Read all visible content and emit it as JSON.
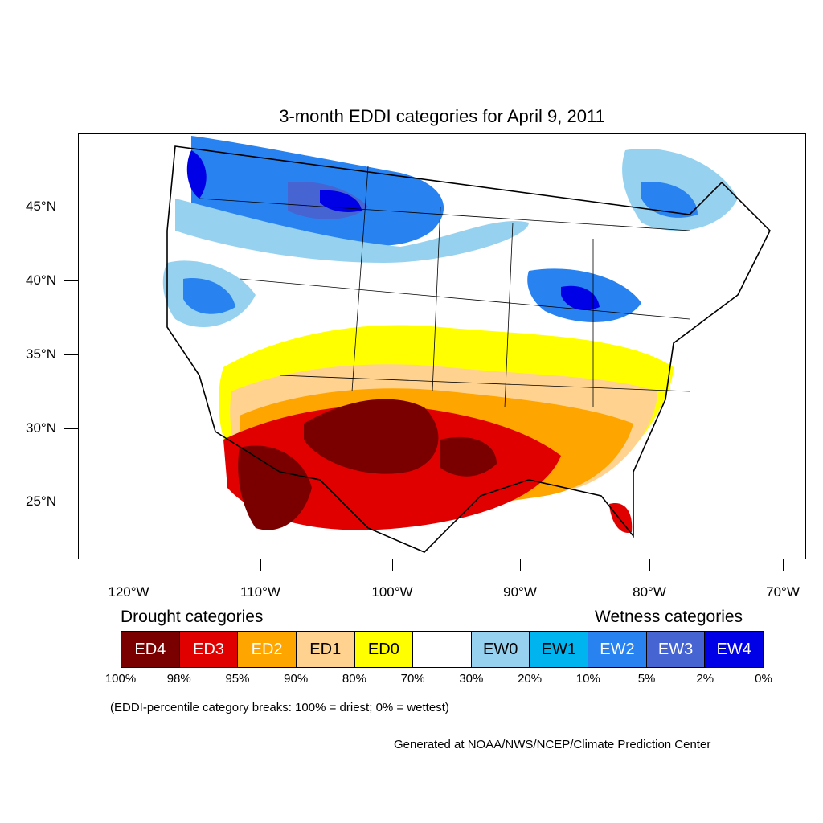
{
  "title": "3-month EDDI categories for April 9, 2011",
  "lat_labels": [
    "45°N",
    "40°N",
    "35°N",
    "30°N",
    "25°N"
  ],
  "lon_labels": [
    "120°W",
    "110°W",
    "100°W",
    "90°W",
    "80°W",
    "70°W"
  ],
  "legend": {
    "drought_title": "Drought categories",
    "wetness_title": "Wetness categories",
    "categories": [
      {
        "label": "ED4",
        "color": "#7a0000",
        "text_color": "#ffffff"
      },
      {
        "label": "ED3",
        "color": "#e00000",
        "text_color": "#ffffff"
      },
      {
        "label": "ED2",
        "color": "#ffa500",
        "text_color": "#ffffff"
      },
      {
        "label": "ED1",
        "color": "#ffd38f",
        "text_color": "#000000"
      },
      {
        "label": "ED0",
        "color": "#ffff00",
        "text_color": "#000000"
      },
      {
        "label": "",
        "color": "#ffffff",
        "text_color": "#000000"
      },
      {
        "label": "EW0",
        "color": "#96d2f0",
        "text_color": "#000000"
      },
      {
        "label": "EW1",
        "color": "#00b4f0",
        "text_color": "#000000"
      },
      {
        "label": "EW2",
        "color": "#2882f0",
        "text_color": "#ffffff"
      },
      {
        "label": "EW3",
        "color": "#4664d2",
        "text_color": "#ffffff"
      },
      {
        "label": "EW4",
        "color": "#0000e6",
        "text_color": "#ffffff"
      }
    ],
    "percent_breaks": [
      "100%",
      "98%",
      "95%",
      "90%",
      "80%",
      "70%",
      "30%",
      "20%",
      "10%",
      "5%",
      "2%",
      "0%"
    ]
  },
  "note": "(EDDI-percentile category breaks: 100% = driest; 0% = wettest)",
  "credit": "Generated at NOAA/NWS/NCEP/Climate Prediction Center"
}
